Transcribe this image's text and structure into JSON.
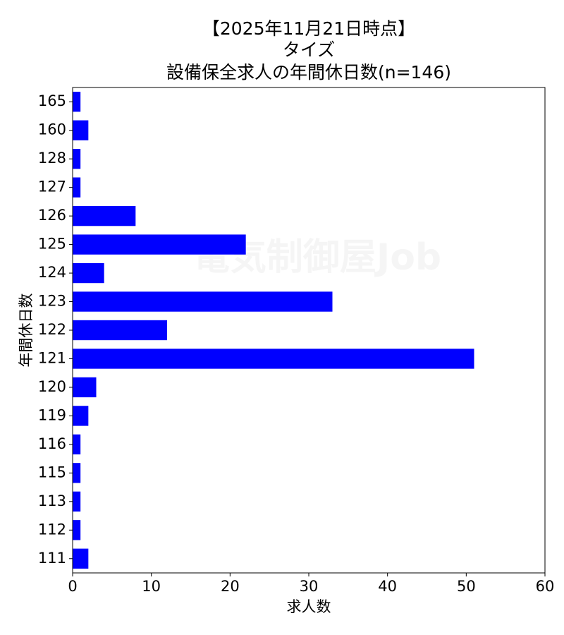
{
  "chart_data": {
    "type": "barh",
    "title": [
      "【2025年11月21日時点】",
      "タイズ",
      "設備保全求人の年間休日数(n=146)"
    ],
    "xlabel": "求人数",
    "ylabel": "年間休日数",
    "watermark": "電気制御屋Job",
    "categories": [
      "111",
      "112",
      "113",
      "115",
      "116",
      "119",
      "120",
      "121",
      "122",
      "123",
      "124",
      "125",
      "126",
      "127",
      "128",
      "160",
      "165"
    ],
    "values": [
      2,
      1,
      1,
      1,
      1,
      2,
      3,
      51,
      12,
      33,
      4,
      22,
      8,
      1,
      1,
      2,
      1
    ],
    "color": "#0000ff",
    "xlim": [
      0,
      60
    ],
    "xticks": [
      0,
      10,
      20,
      30,
      40,
      50,
      60
    ]
  }
}
